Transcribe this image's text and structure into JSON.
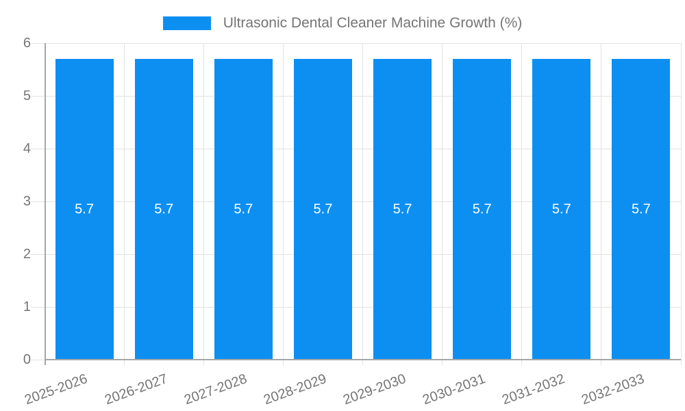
{
  "chart_data": {
    "type": "bar",
    "title": "Ultrasonic Dental Cleaner Machine Growth (%)",
    "legend_position": "top",
    "categories": [
      "2025-2026",
      "2026-2027",
      "2027-2028",
      "2028-2029",
      "2029-2030",
      "2030-2031",
      "2031-2032",
      "2032-2033"
    ],
    "values": [
      5.7,
      5.7,
      5.7,
      5.7,
      5.7,
      5.7,
      5.7,
      5.7
    ],
    "value_labels": [
      "5.7",
      "5.7",
      "5.7",
      "5.7",
      "5.7",
      "5.7",
      "5.7",
      "5.7"
    ],
    "xlabel": "",
    "ylabel": "",
    "ylim": [
      0,
      6
    ],
    "yticks": [
      0,
      1,
      2,
      3,
      4,
      5,
      6
    ],
    "ytick_labels": [
      "0",
      "1",
      "2",
      "3",
      "4",
      "5",
      "6"
    ],
    "grid": true,
    "x_tick_rotation_deg": -20,
    "colors": {
      "bar": "#0D8FF2",
      "grid": "#e2e2e2",
      "axis": "#a6a6a6",
      "tick_text": "#757575",
      "legend_text": "#757575",
      "value_label": "#ffffff",
      "background": "#ffffff"
    }
  }
}
